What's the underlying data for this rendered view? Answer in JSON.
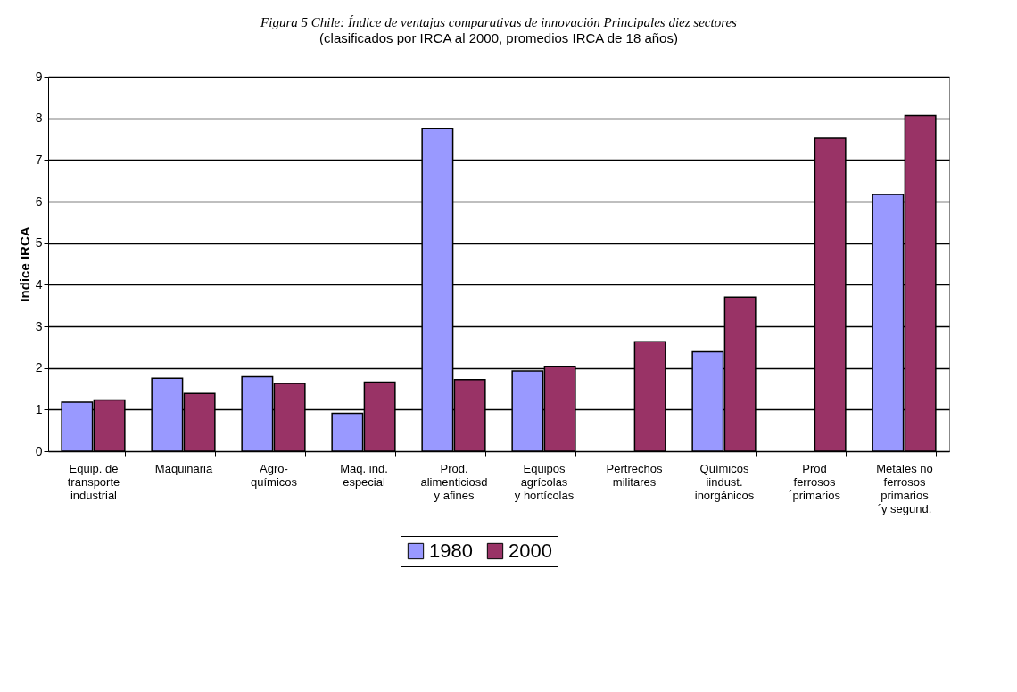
{
  "chart_data": {
    "type": "bar",
    "title": "Figura 5 Chile: Índice de ventajas comparativas de innovación  Principales diez sectores",
    "subtitle": "(clasificados por IRCA al 2000, promedios IRCA de 18 años)",
    "ylabel": "Indice IRCA",
    "categories": [
      "Equip. de\ntransporte\nindustrial",
      "Maquinaria",
      "Agro-\nquímicos",
      "Maq. ind.\nespecial",
      "Prod.\nalimenticiosd\ny afines",
      "Equipos\nagrícolas\ny hortícolas",
      "Pertrechos\nmilitares",
      "Químicos\niindust.\ninorgánicos",
      "Prod\nferrosos\n´primarios",
      "Metales no\nferrosos\nprimarios\n´y segund."
    ],
    "series": [
      {
        "name": "1980",
        "color": "#9999ff",
        "values": [
          1.18,
          1.75,
          1.79,
          0.91,
          7.75,
          1.93,
          null,
          2.39,
          null,
          6.17
        ]
      },
      {
        "name": "2000",
        "color": "#993366",
        "values": [
          1.23,
          1.39,
          1.63,
          1.66,
          1.72,
          2.04,
          2.63,
          3.7,
          7.52,
          8.07
        ]
      }
    ],
    "ylim": [
      0,
      9
    ],
    "yticks": [
      0,
      1,
      2,
      3,
      4,
      5,
      6,
      7,
      8,
      9
    ],
    "grid": "y",
    "legend": "bottom"
  }
}
